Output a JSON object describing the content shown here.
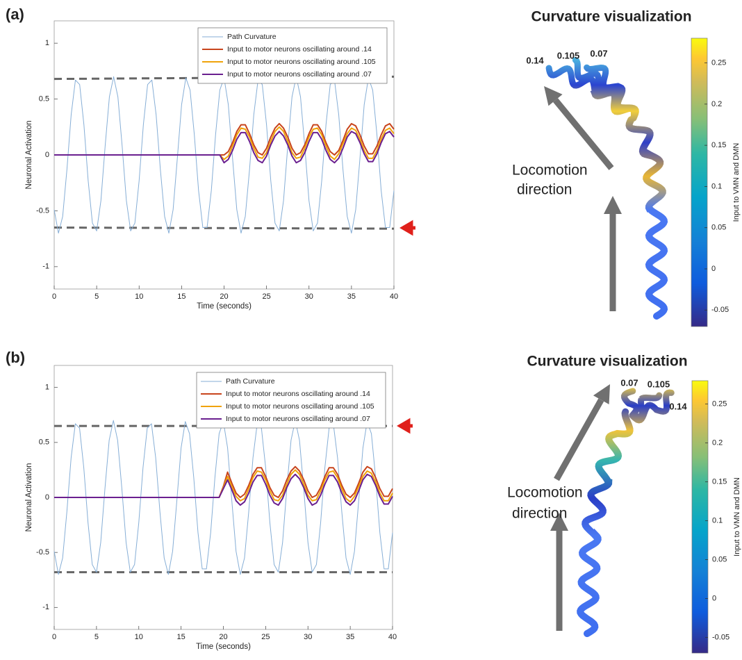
{
  "chart_data": [
    {
      "type": "line",
      "panel_label": "(a)",
      "xlabel": "Time (seconds)",
      "ylabel": "Neuronal Activation",
      "xlim": [
        0,
        40
      ],
      "ylim": [
        -1.2,
        1.2
      ],
      "xticks": [
        0,
        5,
        10,
        15,
        20,
        25,
        30,
        35,
        40
      ],
      "yticks": [
        -1,
        -0.5,
        0,
        0.5,
        1
      ],
      "legend": "upper right",
      "x": [
        0,
        0.5,
        1,
        1.5,
        2,
        2.5,
        3,
        3.5,
        4,
        4.5,
        5,
        5.5,
        6,
        6.5,
        7,
        7.5,
        8,
        8.5,
        9,
        9.5,
        10,
        10.5,
        11,
        11.5,
        12,
        12.5,
        13,
        13.5,
        14,
        14.5,
        15,
        15.5,
        16,
        16.5,
        17,
        17.5,
        18,
        18.5,
        19,
        19.5,
        20,
        20.5,
        21,
        21.5,
        22,
        22.5,
        23,
        23.5,
        24,
        24.5,
        25,
        25.5,
        26,
        26.5,
        27,
        27.5,
        28,
        28.5,
        29,
        29.5,
        30,
        30.5,
        31,
        31.5,
        32,
        32.5,
        33,
        33.5,
        34,
        34.5,
        35,
        35.5,
        36,
        36.5,
        37,
        37.5,
        38,
        38.5,
        39,
        39.5,
        40
      ],
      "series": [
        {
          "name": "Path Curvature",
          "color": "#86aed6",
          "width": 1,
          "values": [
            -0.49,
            -0.7,
            -0.55,
            -0.13,
            0.36,
            0.67,
            0.63,
            0.27,
            -0.23,
            -0.61,
            -0.68,
            -0.41,
            0.08,
            0.52,
            0.7,
            0.52,
            0.08,
            -0.41,
            -0.68,
            -0.61,
            -0.23,
            0.27,
            0.63,
            0.67,
            0.36,
            -0.13,
            -0.55,
            -0.7,
            -0.49,
            -0.03,
            0.45,
            0.69,
            0.58,
            0.18,
            -0.32,
            -0.65,
            -0.65,
            -0.32,
            0.18,
            0.58,
            0.69,
            0.45,
            -0.03,
            -0.49,
            -0.7,
            -0.55,
            -0.13,
            0.36,
            0.67,
            0.63,
            0.27,
            -0.23,
            -0.61,
            -0.68,
            -0.41,
            0.08,
            0.52,
            0.7,
            0.52,
            0.08,
            -0.41,
            -0.68,
            -0.61,
            -0.23,
            0.27,
            0.63,
            0.67,
            0.36,
            -0.13,
            -0.55,
            -0.7,
            -0.49,
            -0.03,
            0.45,
            0.69,
            0.58,
            0.18,
            -0.32,
            -0.65,
            -0.65,
            -0.32
          ]
        },
        {
          "name": "Input to motor neurons oscillating around .14",
          "color": "#c8441c",
          "width": 2,
          "values": [
            0,
            0,
            0,
            0,
            0,
            0,
            0,
            0,
            0,
            0,
            0,
            0,
            0,
            0,
            0,
            0,
            0,
            0,
            0,
            0,
            0,
            0,
            0,
            0,
            0,
            0,
            0,
            0,
            0,
            0,
            0,
            0,
            0,
            0,
            0,
            0,
            0,
            0,
            0,
            0,
            0,
            0.03,
            0.11,
            0.21,
            0.27,
            0.27,
            0.19,
            0.09,
            0.02,
            0,
            0.06,
            0.16,
            0.24,
            0.28,
            0.24,
            0.16,
            0.06,
            0,
            0.02,
            0.09,
            0.19,
            0.27,
            0.27,
            0.21,
            0.11,
            0.03,
            0,
            0.04,
            0.13,
            0.23,
            0.28,
            0.26,
            0.18,
            0.08,
            0.01,
            0.01,
            0.08,
            0.18,
            0.26,
            0.28,
            0.23
          ]
        },
        {
          "name": "Input to motor neurons oscillating around .105",
          "color": "#f0a30a",
          "width": 2,
          "values": [
            0,
            0,
            0,
            0,
            0,
            0,
            0,
            0,
            0,
            0,
            0,
            0,
            0,
            0,
            0,
            0,
            0,
            0,
            0,
            0,
            0,
            0,
            0,
            0,
            0,
            0,
            0,
            0,
            0,
            0,
            0,
            0,
            0,
            0,
            0,
            0,
            0,
            0,
            0,
            0,
            -0.04,
            -0.01,
            0.08,
            0.18,
            0.24,
            0.23,
            0.16,
            0.06,
            -0.02,
            -0.03,
            0.02,
            0.12,
            0.21,
            0.25,
            0.21,
            0.12,
            0.02,
            -0.03,
            -0.02,
            0.06,
            0.16,
            0.23,
            0.24,
            0.18,
            0.08,
            -0.01,
            -0.04,
            0.01,
            0.1,
            0.19,
            0.24,
            0.22,
            0.14,
            0.04,
            -0.03,
            -0.03,
            0.04,
            0.14,
            0.22,
            0.24,
            0.19
          ]
        },
        {
          "name": "Input to motor neurons oscillating around .07",
          "color": "#6a1f8f",
          "width": 2,
          "values": [
            0,
            0,
            0,
            0,
            0,
            0,
            0,
            0,
            0,
            0,
            0,
            0,
            0,
            0,
            0,
            0,
            0,
            0,
            0,
            0,
            0,
            0,
            0,
            0,
            0,
            0,
            0,
            0,
            0,
            0,
            0,
            0,
            0,
            0,
            0,
            0,
            0,
            0,
            0,
            0,
            -0.07,
            -0.04,
            0.04,
            0.14,
            0.2,
            0.2,
            0.12,
            0.02,
            -0.05,
            -0.07,
            -0.01,
            0.09,
            0.17,
            0.21,
            0.17,
            0.09,
            -0.01,
            -0.07,
            -0.05,
            0.02,
            0.12,
            0.2,
            0.2,
            0.14,
            0.04,
            -0.04,
            -0.07,
            -0.03,
            0.06,
            0.16,
            0.21,
            0.19,
            0.11,
            0.01,
            -0.06,
            -0.06,
            0.01,
            0.11,
            0.19,
            0.21,
            0.16
          ]
        }
      ],
      "dashed_lines": [
        {
          "y": [
            0.68,
            0.7
          ]
        },
        {
          "y": [
            -0.65,
            -0.66
          ]
        }
      ]
    },
    {
      "type": "line",
      "panel_label": "(b)",
      "xlabel": "Time (seconds)",
      "ylabel": "Neuronal Activation",
      "xlim": [
        0,
        40
      ],
      "ylim": [
        -1.2,
        1.2
      ],
      "xticks": [
        0,
        5,
        10,
        15,
        20,
        25,
        30,
        35,
        40
      ],
      "yticks": [
        -1,
        -0.5,
        0,
        0.5,
        1
      ],
      "legend": "upper right",
      "x": [
        0,
        0.5,
        1,
        1.5,
        2,
        2.5,
        3,
        3.5,
        4,
        4.5,
        5,
        5.5,
        6,
        6.5,
        7,
        7.5,
        8,
        8.5,
        9,
        9.5,
        10,
        10.5,
        11,
        11.5,
        12,
        12.5,
        13,
        13.5,
        14,
        14.5,
        15,
        15.5,
        16,
        16.5,
        17,
        17.5,
        18,
        18.5,
        19,
        19.5,
        20,
        20.5,
        21,
        21.5,
        22,
        22.5,
        23,
        23.5,
        24,
        24.5,
        25,
        25.5,
        26,
        26.5,
        27,
        27.5,
        28,
        28.5,
        29,
        29.5,
        30,
        30.5,
        31,
        31.5,
        32,
        32.5,
        33,
        33.5,
        34,
        34.5,
        35,
        35.5,
        36,
        36.5,
        37,
        37.5,
        38,
        38.5,
        39,
        39.5,
        40
      ],
      "series": [
        {
          "name": "Path Curvature",
          "color": "#86aed6",
          "width": 1,
          "values": [
            -0.49,
            -0.7,
            -0.55,
            -0.13,
            0.36,
            0.67,
            0.63,
            0.27,
            -0.23,
            -0.61,
            -0.68,
            -0.41,
            0.08,
            0.52,
            0.7,
            0.52,
            0.08,
            -0.41,
            -0.68,
            -0.61,
            -0.23,
            0.27,
            0.63,
            0.67,
            0.36,
            -0.13,
            -0.55,
            -0.7,
            -0.49,
            -0.03,
            0.45,
            0.69,
            0.58,
            0.18,
            -0.32,
            -0.65,
            -0.65,
            -0.32,
            0.18,
            0.58,
            0.69,
            0.45,
            -0.03,
            -0.49,
            -0.7,
            -0.55,
            -0.13,
            0.36,
            0.67,
            0.63,
            0.27,
            -0.23,
            -0.61,
            -0.68,
            -0.41,
            0.08,
            0.52,
            0.7,
            0.52,
            0.08,
            -0.41,
            -0.68,
            -0.61,
            -0.23,
            0.27,
            0.63,
            0.67,
            0.36,
            -0.13,
            -0.55,
            -0.7,
            -0.49,
            -0.03,
            0.45,
            0.69,
            0.58,
            0.18,
            -0.32,
            -0.65,
            -0.65,
            -0.32
          ]
        },
        {
          "name": "Input to motor neurons oscillating around .14",
          "color": "#c8441c",
          "width": 2,
          "values": [
            0,
            0,
            0,
            0,
            0,
            0,
            0,
            0,
            0,
            0,
            0,
            0,
            0,
            0,
            0,
            0,
            0,
            0,
            0,
            0,
            0,
            0,
            0,
            0,
            0,
            0,
            0,
            0,
            0,
            0,
            0,
            0,
            0,
            0,
            0,
            0,
            0,
            0,
            0,
            0,
            0.1,
            0.23,
            0.13,
            0.04,
            0,
            0.03,
            0.11,
            0.21,
            0.27,
            0.27,
            0.19,
            0.09,
            0.02,
            0,
            0.06,
            0.16,
            0.24,
            0.28,
            0.24,
            0.16,
            0.06,
            0,
            0.02,
            0.09,
            0.19,
            0.27,
            0.27,
            0.21,
            0.11,
            0.03,
            0,
            0.04,
            0.13,
            0.23,
            0.28,
            0.26,
            0.18,
            0.08,
            0.01,
            0.01,
            0.08
          ]
        },
        {
          "name": "Input to motor neurons oscillating around .105",
          "color": "#f0a30a",
          "width": 2,
          "values": [
            0,
            0,
            0,
            0,
            0,
            0,
            0,
            0,
            0,
            0,
            0,
            0,
            0,
            0,
            0,
            0,
            0,
            0,
            0,
            0,
            0,
            0,
            0,
            0,
            0,
            0,
            0,
            0,
            0,
            0,
            0,
            0,
            0,
            0,
            0,
            0,
            0,
            0,
            0,
            0,
            0.09,
            0.19,
            0.1,
            0.01,
            -0.03,
            -0.01,
            0.08,
            0.18,
            0.24,
            0.23,
            0.16,
            0.06,
            -0.02,
            -0.03,
            0.02,
            0.12,
            0.21,
            0.25,
            0.21,
            0.12,
            0.02,
            -0.03,
            -0.02,
            0.06,
            0.16,
            0.23,
            0.24,
            0.18,
            0.08,
            -0.01,
            -0.04,
            0.01,
            0.1,
            0.19,
            0.24,
            0.22,
            0.14,
            0.04,
            -0.03,
            -0.03,
            0.04
          ]
        },
        {
          "name": "Input to motor neurons oscillating around .07",
          "color": "#6a1f8f",
          "width": 2,
          "values": [
            0,
            0,
            0,
            0,
            0,
            0,
            0,
            0,
            0,
            0,
            0,
            0,
            0,
            0,
            0,
            0,
            0,
            0,
            0,
            0,
            0,
            0,
            0,
            0,
            0,
            0,
            0,
            0,
            0,
            0,
            0,
            0,
            0,
            0,
            0,
            0,
            0,
            0,
            0,
            0,
            0.08,
            0.16,
            0.07,
            -0.03,
            -0.07,
            -0.04,
            0.04,
            0.14,
            0.2,
            0.2,
            0.12,
            0.02,
            -0.05,
            -0.07,
            -0.01,
            0.09,
            0.17,
            0.21,
            0.17,
            0.09,
            -0.01,
            -0.07,
            -0.05,
            0.02,
            0.12,
            0.2,
            0.2,
            0.14,
            0.04,
            -0.04,
            -0.07,
            -0.03,
            0.06,
            0.16,
            0.21,
            0.19,
            0.11,
            0.01,
            -0.06,
            -0.06,
            0.01
          ]
        }
      ],
      "dashed_lines": [
        {
          "y": [
            0.65,
            0.65
          ]
        },
        {
          "y": [
            -0.68,
            -0.68
          ]
        }
      ]
    }
  ],
  "visualizations": [
    {
      "title": "Curvature visualization",
      "tail_labels": [
        "0.14",
        "0.105",
        "0.07"
      ],
      "direction_label": [
        "Locomotion",
        "direction"
      ],
      "colorbar": {
        "label": "Input to VMN and DMN",
        "lim": [
          -0.07,
          0.28
        ],
        "ticks": [
          -0.05,
          0,
          0.05,
          0.1,
          0.15,
          0.2,
          0.25
        ]
      }
    },
    {
      "title": "Curvature visualization",
      "tail_labels": [
        "0.07",
        "0.105",
        "0.14"
      ],
      "direction_label": [
        "Locomotion",
        "direction"
      ],
      "colorbar": {
        "label": "Input to VMN and DMN",
        "lim": [
          -0.07,
          0.28
        ],
        "ticks": [
          -0.05,
          0,
          0.05,
          0.1,
          0.15,
          0.2,
          0.25
        ]
      }
    }
  ]
}
